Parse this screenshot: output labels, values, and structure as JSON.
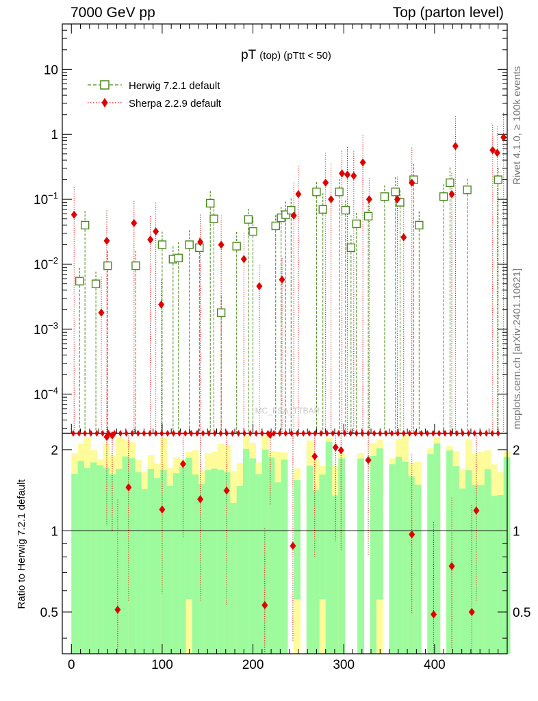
{
  "header": {
    "left": "7000 GeV pp",
    "right": "Top (parton level)"
  },
  "side_labels": {
    "top": "Rivet 4.1.0, ≥ 100k events",
    "bottom": "mcplots.cern.ch [arXiv:2401.10621]"
  },
  "colors": {
    "herwig": "#4a8a1c",
    "sherpa": "#e00000",
    "band_green": "#9dfb9d",
    "band_yellow": "#fdfb9a"
  },
  "chart_data": {
    "type": "scatter",
    "title": "pT",
    "title_sub": "(top) (pTtt < 50)",
    "watermark": "MC_FSA_TTBAR",
    "xlim": [
      -10,
      480
    ],
    "ylim": [
      2.5e-05,
      50
    ],
    "yscale": "log",
    "ytick_labels": [
      "10",
      "1",
      "10^-1",
      "10^-2",
      "10^-3",
      "10^-4"
    ],
    "xticks": [
      0,
      100,
      200,
      300,
      400
    ],
    "xtick_labels": [
      "0",
      "100",
      "200",
      "300",
      "400"
    ],
    "series": [
      {
        "name": "Herwig 7.2.1 default",
        "marker": "open-square",
        "x": [
          9,
          15,
          27,
          40,
          71,
          100,
          112,
          118,
          130,
          141,
          153,
          157,
          165,
          182,
          195,
          200,
          225,
          231,
          236,
          242,
          270,
          277,
          295,
          302,
          308,
          314,
          327,
          345,
          357,
          362,
          377,
          383,
          410,
          417,
          436,
          470
        ],
        "values": [
          0.0055,
          0.04,
          0.005,
          0.0095,
          0.0095,
          0.02,
          0.012,
          0.0125,
          0.02,
          0.018,
          0.087,
          0.05,
          0.0018,
          0.019,
          0.049,
          0.032,
          0.039,
          0.052,
          0.058,
          0.068,
          0.13,
          0.07,
          0.13,
          0.068,
          0.018,
          0.042,
          0.055,
          0.11,
          0.13,
          0.09,
          0.2,
          0.04,
          0.11,
          0.18,
          0.14,
          0.2
        ]
      },
      {
        "name": "Sherpa 2.2.9 default",
        "marker": "filled-diamond",
        "x": [
          3,
          33,
          39,
          69,
          87,
          93,
          99,
          142,
          165,
          190,
          207,
          232,
          245,
          250,
          280,
          286,
          298,
          304,
          311,
          321,
          328,
          359,
          366,
          375,
          419,
          423,
          464,
          469,
          476
        ],
        "values": [
          0.058,
          0.0018,
          0.023,
          0.043,
          0.024,
          0.032,
          0.0024,
          0.022,
          0.02,
          0.012,
          0.0046,
          0.0058,
          0.056,
          0.12,
          0.18,
          0.1,
          0.25,
          0.24,
          0.23,
          0.37,
          0.1,
          0.1,
          0.026,
          0.18,
          0.12,
          0.66,
          0.57,
          0.52,
          0.9
        ]
      }
    ],
    "ratio": {
      "ylabel": "Ratio to Herwig 7.2.1 default",
      "ylim": [
        0.35,
        2.3
      ],
      "ytick_labels": [
        "2",
        "1",
        "0.5"
      ],
      "x": [
        39,
        45,
        51,
        63,
        100,
        123,
        142,
        171,
        213,
        219,
        244,
        268,
        291,
        297,
        327,
        375,
        399,
        419,
        441,
        446
      ],
      "values": [
        2.23,
        2.26,
        0.51,
        1.45,
        1.2,
        1.77,
        1.31,
        1.41,
        0.53,
        2.27,
        0.88,
        1.89,
        2.04,
        1.99,
        1.83,
        0.97,
        0.49,
        0.74,
        0.5,
        1.19
      ],
      "reference": 1
    }
  }
}
